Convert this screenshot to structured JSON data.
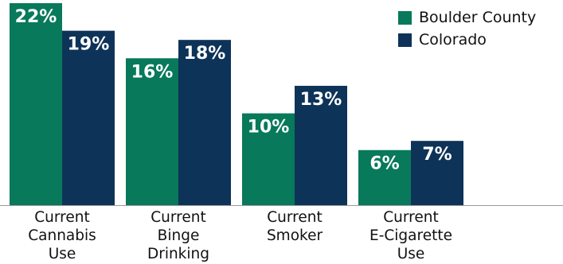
{
  "chart_data": {
    "type": "bar",
    "categories": [
      [
        "Current",
        "Cannabis",
        "Use"
      ],
      [
        "Current",
        "Binge",
        "Drinking"
      ],
      [
        "Current",
        "Smoker"
      ],
      [
        "Current",
        "E-Cigarette",
        "Use"
      ]
    ],
    "series": [
      {
        "name": "Boulder County",
        "values": [
          22,
          16,
          10,
          6
        ],
        "labels": [
          "22%",
          "16%",
          "10%",
          "6%"
        ],
        "color": "#08795a"
      },
      {
        "name": "Colorado",
        "values": [
          19,
          18,
          13,
          7
        ],
        "labels": [
          "19%",
          "18%",
          "13%",
          "7%"
        ],
        "color": "#0e3358"
      }
    ],
    "value_unit": "%",
    "ylim": [
      0,
      22
    ],
    "grid": false,
    "legend_position": "top-right",
    "title": "",
    "xlabel": "",
    "ylabel": ""
  }
}
